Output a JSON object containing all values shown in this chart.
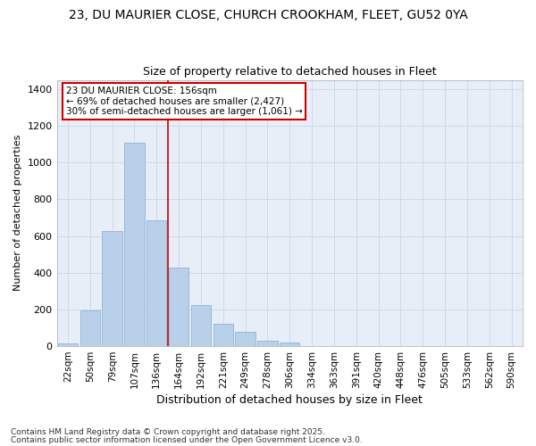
{
  "title_line1": "23, DU MAURIER CLOSE, CHURCH CROOKHAM, FLEET, GU52 0YA",
  "title_line2": "Size of property relative to detached houses in Fleet",
  "xlabel": "Distribution of detached houses by size in Fleet",
  "ylabel": "Number of detached properties",
  "bar_labels": [
    "22sqm",
    "50sqm",
    "79sqm",
    "107sqm",
    "136sqm",
    "164sqm",
    "192sqm",
    "221sqm",
    "249sqm",
    "278sqm",
    "306sqm",
    "334sqm",
    "363sqm",
    "391sqm",
    "420sqm",
    "448sqm",
    "476sqm",
    "505sqm",
    "533sqm",
    "562sqm",
    "590sqm"
  ],
  "bar_values": [
    15,
    195,
    625,
    1110,
    685,
    430,
    225,
    120,
    80,
    30,
    20,
    0,
    0,
    0,
    0,
    0,
    0,
    0,
    0,
    0,
    0
  ],
  "bar_color": "#b8d0ea",
  "bar_edge_color": "#90b4d8",
  "grid_color": "#ccdaeb",
  "background_color": "#e8eef8",
  "ylim": [
    0,
    1450
  ],
  "yticks": [
    0,
    200,
    400,
    600,
    800,
    1000,
    1200,
    1400
  ],
  "vline_color": "#cc0000",
  "annotation_title": "23 DU MAURIER CLOSE: 156sqm",
  "annotation_line1": "← 69% of detached houses are smaller (2,427)",
  "annotation_line2": "30% of semi-detached houses are larger (1,061) →",
  "annotation_box_color": "#ffffff",
  "annotation_edge_color": "#cc0000",
  "footer_line1": "Contains HM Land Registry data © Crown copyright and database right 2025.",
  "footer_line2": "Contains public sector information licensed under the Open Government Licence v3.0."
}
